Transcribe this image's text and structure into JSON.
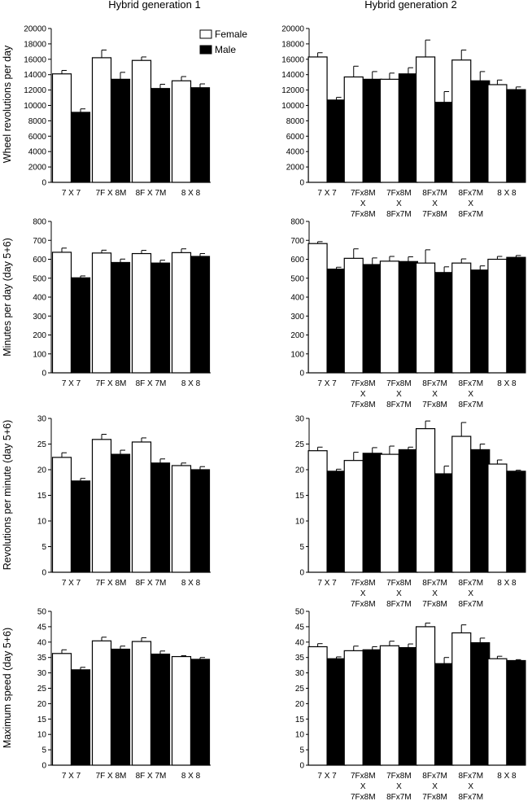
{
  "column_titles": [
    "Hybrid generation 1",
    "Hybrid generation 2"
  ],
  "legend": {
    "female": "Female",
    "male": "Male"
  },
  "colors": {
    "female": "#ffffff",
    "male": "#000000",
    "axis": "#000000"
  },
  "category_labels": {
    "gen1": [
      [
        "7 X 7"
      ],
      [
        "7F X 8M"
      ],
      [
        "8F X 7M"
      ],
      [
        "8 X 8"
      ]
    ],
    "gen2": [
      [
        "7 X 7"
      ],
      [
        "7Fx8M",
        "X",
        "7Fx8M"
      ],
      [
        "7Fx8M",
        "X",
        "8Fx7M"
      ],
      [
        "8Fx7M",
        "X",
        "7Fx8M"
      ],
      [
        "8Fx7M",
        "X",
        "8Fx7M"
      ],
      [
        "8 X 8"
      ]
    ]
  },
  "chart_data": [
    {
      "type": "bar",
      "id": "p00",
      "ylabel": "Wheel revolutions per day",
      "ylim": [
        0,
        20000
      ],
      "yticks": [
        0,
        2000,
        4000,
        6000,
        8000,
        10000,
        12000,
        14000,
        16000,
        18000,
        20000
      ],
      "categories": [
        "7 X 7",
        "7F X 8M",
        "8F X 7M",
        "8 X 8"
      ],
      "legend": [
        "Female",
        "Male"
      ],
      "series": [
        {
          "name": "Female",
          "values": [
            14100,
            16200,
            15850,
            13200
          ],
          "errors": [
            450,
            1000,
            450,
            550
          ]
        },
        {
          "name": "Male",
          "values": [
            9100,
            13400,
            12200,
            12300
          ],
          "errors": [
            450,
            900,
            550,
            500
          ]
        }
      ]
    },
    {
      "type": "bar",
      "id": "p01",
      "ylabel": "",
      "ylim": [
        0,
        20000
      ],
      "yticks": [
        0,
        2000,
        4000,
        6000,
        8000,
        10000,
        12000,
        14000,
        16000,
        18000,
        20000
      ],
      "categories": [
        "7 X 7",
        "7Fx8M X 7Fx8M",
        "7Fx8M X 8Fx7M",
        "8Fx7M X 7Fx8M",
        "8Fx7M X 8Fx7M",
        "8 X 8"
      ],
      "series": [
        {
          "name": "Female",
          "values": [
            16300,
            13700,
            13400,
            16300,
            15900,
            12700
          ],
          "errors": [
            550,
            1400,
            800,
            2200,
            1300,
            600
          ]
        },
        {
          "name": "Male",
          "values": [
            10700,
            13400,
            14100,
            10400,
            13200,
            12050
          ],
          "errors": [
            350,
            1000,
            800,
            1400,
            1200,
            350
          ]
        }
      ]
    },
    {
      "type": "bar",
      "id": "p10",
      "ylabel": "Minutes per day (day 5+6)",
      "ylim": [
        0,
        800
      ],
      "yticks": [
        0,
        100,
        200,
        300,
        400,
        500,
        600,
        700,
        800
      ],
      "categories": [
        "7 X 7",
        "7F X 8M",
        "8F X 7M",
        "8 X 8"
      ],
      "series": [
        {
          "name": "Female",
          "values": [
            637,
            633,
            630,
            635
          ],
          "errors": [
            22,
            15,
            17,
            20
          ]
        },
        {
          "name": "Male",
          "values": [
            502,
            583,
            580,
            615
          ],
          "errors": [
            10,
            18,
            15,
            15
          ]
        }
      ]
    },
    {
      "type": "bar",
      "id": "p11",
      "ylabel": "",
      "ylim": [
        0,
        800
      ],
      "yticks": [
        0,
        100,
        200,
        300,
        400,
        500,
        600,
        700,
        800
      ],
      "categories": [
        "7 X 7",
        "7Fx8M X 7Fx8M",
        "7Fx8M X 8Fx7M",
        "8Fx7M X 7Fx8M",
        "8Fx7M X 8Fx7M",
        "8 X 8"
      ],
      "series": [
        {
          "name": "Female",
          "values": [
            683,
            605,
            590,
            580,
            580,
            600
          ],
          "errors": [
            10,
            50,
            25,
            70,
            22,
            15
          ]
        },
        {
          "name": "Male",
          "values": [
            548,
            572,
            588,
            530,
            543,
            610
          ],
          "errors": [
            10,
            35,
            25,
            30,
            22,
            10
          ]
        }
      ]
    },
    {
      "type": "bar",
      "id": "p20",
      "ylabel": "Revolutions per minute (day 5+6)",
      "ylim": [
        0,
        30
      ],
      "yticks": [
        0,
        5,
        10,
        15,
        20,
        25,
        30
      ],
      "categories": [
        "7 X 7",
        "7F X 8M",
        "8F X 7M",
        "8 X 8"
      ],
      "series": [
        {
          "name": "Female",
          "values": [
            22.4,
            25.9,
            25.4,
            20.8
          ],
          "errors": [
            0.9,
            1.0,
            0.8,
            0.5
          ]
        },
        {
          "name": "Male",
          "values": [
            17.8,
            23.0,
            21.3,
            20.0
          ],
          "errors": [
            0.5,
            0.8,
            0.8,
            0.6
          ]
        }
      ]
    },
    {
      "type": "bar",
      "id": "p21",
      "ylabel": "",
      "ylim": [
        0,
        30
      ],
      "yticks": [
        0,
        5,
        10,
        15,
        20,
        25,
        30
      ],
      "categories": [
        "7 X 7",
        "7Fx8M X 7Fx8M",
        "7Fx8M X 8Fx7M",
        "8Fx7M X 7Fx8M",
        "8Fx7M X 8Fx7M",
        "8 X 8"
      ],
      "series": [
        {
          "name": "Female",
          "values": [
            23.7,
            21.8,
            23.0,
            28.0,
            26.5,
            21.1
          ],
          "errors": [
            0.7,
            1.6,
            1.6,
            1.5,
            2.7,
            0.8
          ]
        },
        {
          "name": "Male",
          "values": [
            19.7,
            23.2,
            23.9,
            19.2,
            23.9,
            19.7
          ],
          "errors": [
            0.4,
            1.1,
            0.5,
            1.5,
            1.1,
            0.2
          ]
        }
      ]
    },
    {
      "type": "bar",
      "id": "p30",
      "ylabel": "Maximum speed (day 5+6)",
      "ylim": [
        0,
        50
      ],
      "yticks": [
        0,
        5,
        10,
        15,
        20,
        25,
        30,
        35,
        40,
        45,
        50
      ],
      "categories": [
        "7 X 7",
        "7F X 8M",
        "8F X 7M",
        "8 X 8"
      ],
      "series": [
        {
          "name": "Female",
          "values": [
            36.3,
            40.4,
            40.2,
            35.3
          ],
          "errors": [
            1.2,
            1.2,
            1.2,
            0.3
          ]
        },
        {
          "name": "Male",
          "values": [
            31.0,
            37.7,
            36.1,
            34.4
          ],
          "errors": [
            0.8,
            1.0,
            1.0,
            0.6
          ]
        }
      ]
    },
    {
      "type": "bar",
      "id": "p31",
      "ylabel": "",
      "ylim": [
        0,
        50
      ],
      "yticks": [
        0,
        5,
        10,
        15,
        20,
        25,
        30,
        35,
        40,
        45,
        50
      ],
      "categories": [
        "7 X 7",
        "7Fx8M X 7Fx8M",
        "7Fx8M X 8Fx7M",
        "8Fx7M X 7Fx8M",
        "8Fx7M X 8Fx7M",
        "8 X 8"
      ],
      "series": [
        {
          "name": "Female",
          "values": [
            38.5,
            37.2,
            38.8,
            45.0,
            43.0,
            34.6
          ],
          "errors": [
            1.0,
            1.5,
            1.5,
            1.2,
            2.6,
            0.8
          ]
        },
        {
          "name": "Male",
          "values": [
            34.6,
            37.5,
            38.2,
            33.0,
            39.8,
            34.0
          ],
          "errors": [
            0.6,
            1.0,
            1.2,
            2.0,
            1.5,
            0.3
          ]
        }
      ]
    }
  ]
}
